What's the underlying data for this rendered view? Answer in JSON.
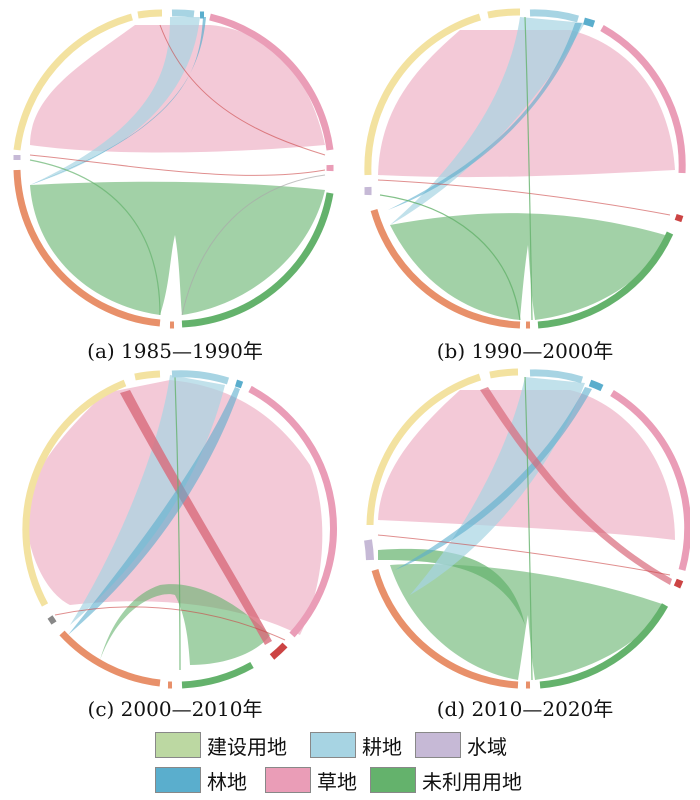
{
  "colors": {
    "build": "#bcd8a2",
    "farm": "#a7d4e3",
    "water": "#c6b9d6",
    "forest": "#5aaecd",
    "grass": "#ea9db7",
    "unused": "#64b26c",
    "ring_pale": "#f3e2a0"
  },
  "panels": [
    {
      "caption": "(a) 1985—1990年"
    },
    {
      "caption": "(b) 1990—2000年"
    },
    {
      "caption": "(c) 2000—2010年"
    },
    {
      "caption": "(d) 2010—2020年"
    }
  ],
  "legend": [
    {
      "label": "建设用地",
      "color": "#bcd8a2"
    },
    {
      "label": "耕地",
      "color": "#a7d4e3"
    },
    {
      "label": "水域",
      "color": "#c6b9d6"
    },
    {
      "label": "林地",
      "color": "#5aaecd"
    },
    {
      "label": "草地",
      "color": "#ea9db7"
    },
    {
      "label": "未利用用地",
      "color": "#64b26c"
    }
  ]
}
